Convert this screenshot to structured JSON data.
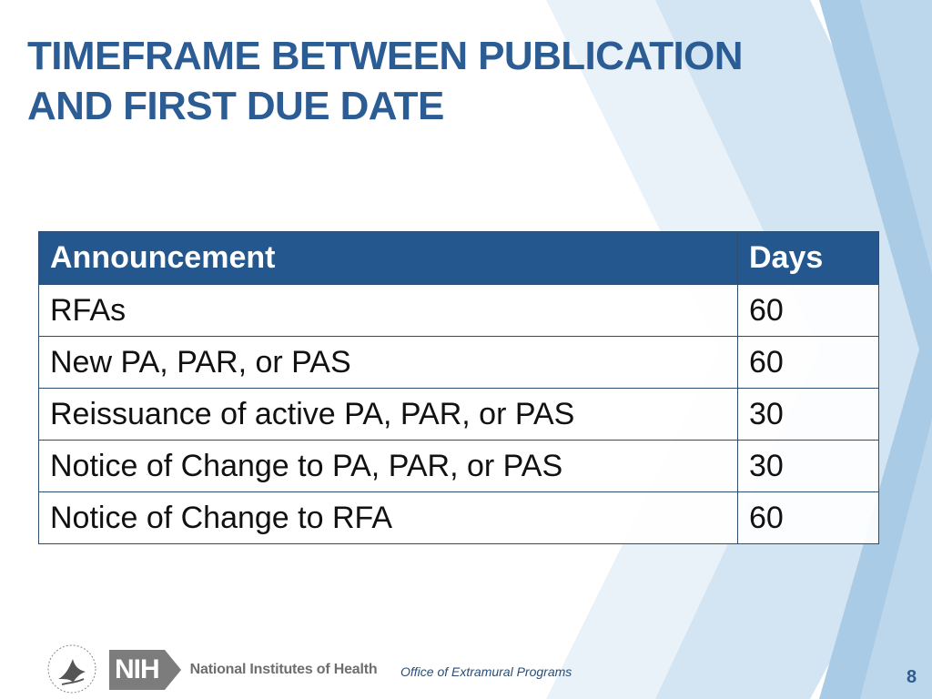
{
  "slide": {
    "title_line1": "TIMEFRAME BETWEEN PUBLICATION",
    "title_line2": "AND FIRST DUE DATE"
  },
  "table": {
    "headers": [
      "Announcement",
      "Days"
    ],
    "rows": [
      [
        "RFAs",
        "60"
      ],
      [
        "New PA, PAR, or PAS",
        "60"
      ],
      [
        "Reissuance of active PA, PAR, or PAS",
        "30"
      ],
      [
        "Notice of Change to PA, PAR, or PAS",
        "30"
      ],
      [
        "Notice of Change to RFA",
        "60"
      ]
    ]
  },
  "footer": {
    "logo_text": "NIH",
    "org_name": "National Institutes of Health",
    "office": "Office of Extramural Programs",
    "page_number": "8"
  },
  "colors": {
    "title": "#2b5c94",
    "table_header_bg": "#23578e",
    "chevron_light": "#e4eef7",
    "chevron_mid": "#c4daee",
    "chevron_dark": "#98bfe0"
  },
  "icons": [
    "hhs-eagle-icon",
    "nih-logo-icon"
  ]
}
